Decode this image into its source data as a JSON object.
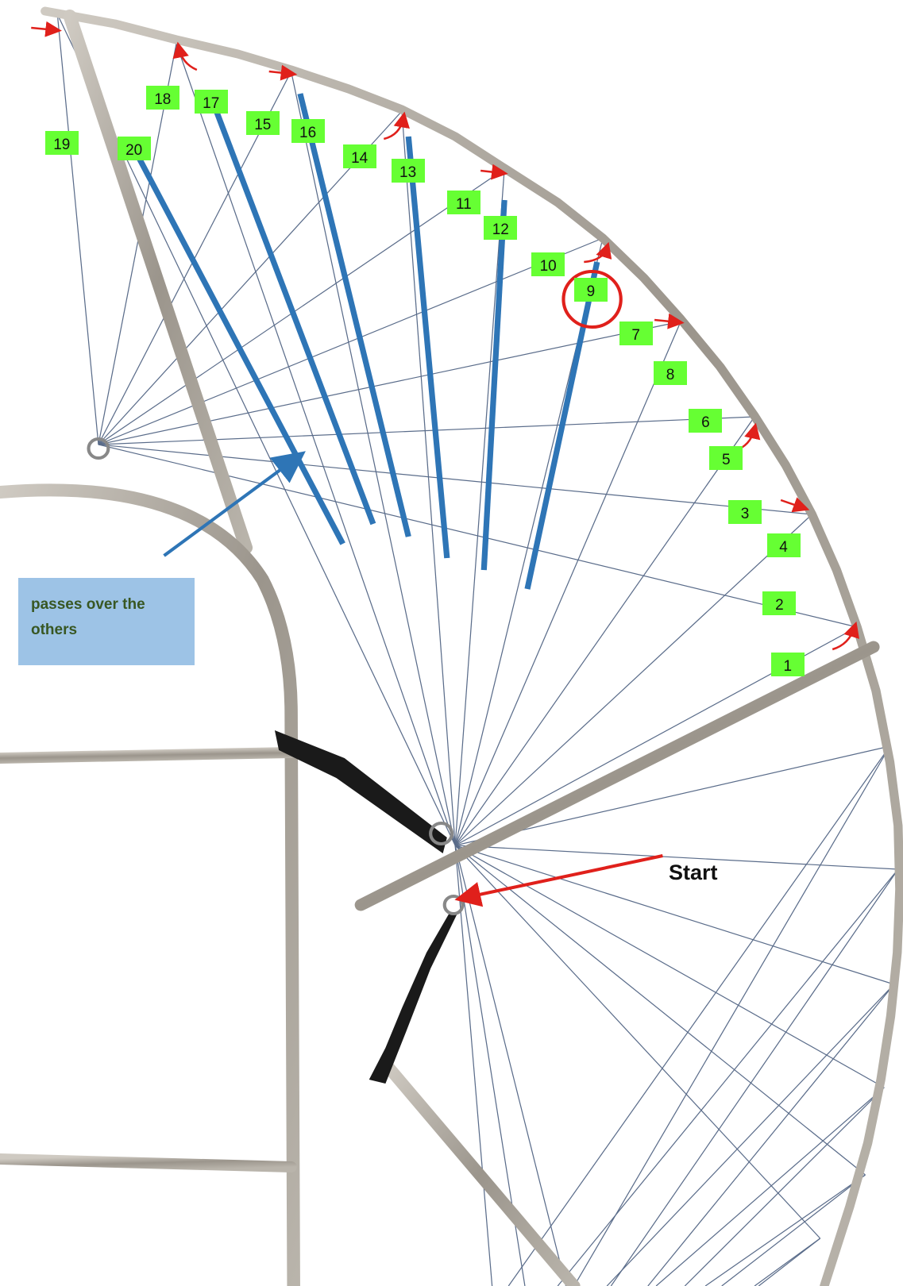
{
  "labels": [
    "1",
    "2",
    "3",
    "4",
    "5",
    "6",
    "7",
    "8",
    "9",
    "10",
    "11",
    "12",
    "13",
    "14",
    "15",
    "16",
    "17",
    "18",
    "19",
    "20"
  ],
  "callout": {
    "text": "passes over the others"
  },
  "start_label": "Start"
}
